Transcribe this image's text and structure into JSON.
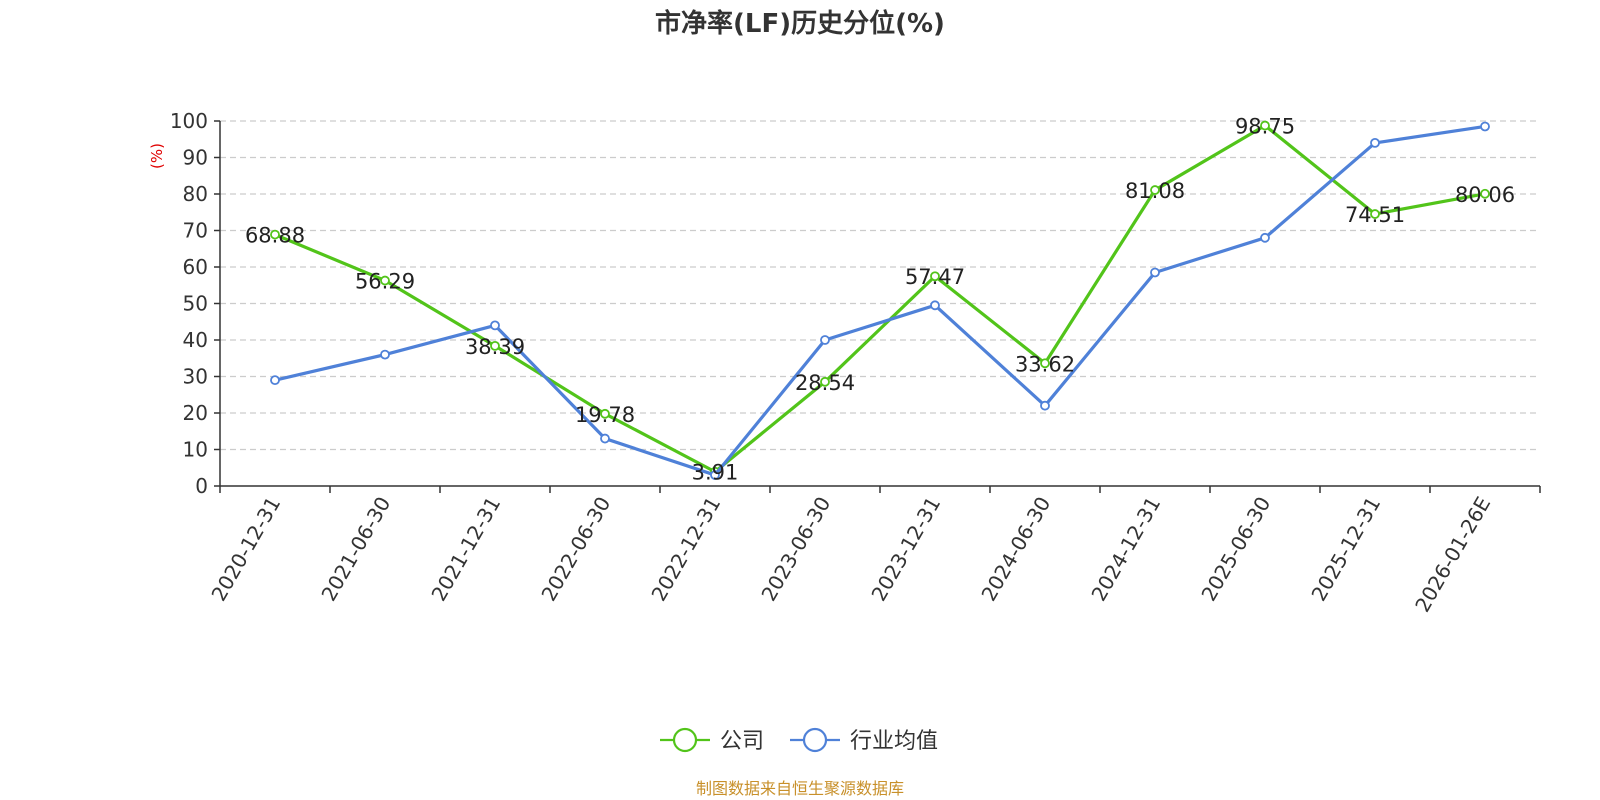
{
  "chart_data": {
    "type": "line",
    "title": "市净率(LF)历史分位(%)",
    "ylabel": "(%)",
    "xlabel": "",
    "categories": [
      "2020-12-31",
      "2021-06-30",
      "2021-12-31",
      "2022-06-30",
      "2022-12-31",
      "2023-06-30",
      "2023-12-31",
      "2024-06-30",
      "2024-12-31",
      "2025-06-30",
      "2025-12-31",
      "2026-01-26E"
    ],
    "ylim": [
      0,
      100
    ],
    "yticks": [
      0,
      10,
      20,
      30,
      40,
      50,
      60,
      70,
      80,
      90,
      100
    ],
    "grid": true,
    "legend_position": "bottom-center",
    "series": [
      {
        "name": "公司",
        "color": "#52c41a",
        "values": [
          68.88,
          56.29,
          38.39,
          19.78,
          3.91,
          28.54,
          57.47,
          33.62,
          81.08,
          98.75,
          74.51,
          80.06
        ],
        "labels": [
          "68.88",
          "56.29",
          "38.39",
          "19.78",
          "3.91",
          "28.54",
          "57.47",
          "33.62",
          "81.08",
          "98.75",
          "74.51",
          "80.06"
        ]
      },
      {
        "name": "行业均值",
        "color": "#4f81d8",
        "values": [
          29,
          36,
          44,
          13,
          3,
          40,
          49.5,
          22,
          58.5,
          68,
          94,
          98.5
        ]
      }
    ],
    "source": "制图数据来自恒生聚源数据库",
    "colors": {
      "title": "#333333",
      "ylabel": "#e00000",
      "source": "#c8902a",
      "axis": "#333333",
      "grid": "#cccccc"
    }
  }
}
